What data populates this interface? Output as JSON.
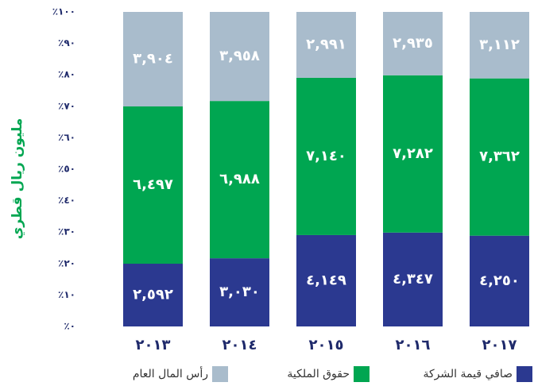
{
  "chart_data": {
    "type": "bar",
    "stacked_percent": true,
    "y_label": "مليون ريال قطري",
    "categories": [
      "٢٠١٣",
      "٢٠١٤",
      "٢٠١٥",
      "٢٠١٦",
      "٢٠١٧"
    ],
    "series": [
      {
        "name": "صافي قيمة الشركة",
        "color": "#2b3990",
        "values": [
          2592,
          3030,
          4149,
          4347,
          4250
        ],
        "value_labels": [
          "٢,٥٩٢",
          "٣,٠٣٠",
          "٤,١٤٩",
          "٤,٣٤٧",
          "٤,٢٥٠"
        ]
      },
      {
        "name": "حقوق الملكية",
        "color": "#00a651",
        "values": [
          6497,
          6988,
          7140,
          7282,
          7362
        ],
        "value_labels": [
          "٦,٤٩٧",
          "٦,٩٨٨",
          "٧,١٤٠",
          "٧,٢٨٢",
          "٧,٣٦٢"
        ]
      },
      {
        "name": "رأس المال العام",
        "color": "#a9bccc",
        "values": [
          3904,
          3958,
          2991,
          2935,
          3112
        ],
        "value_labels": [
          "٣,٩٠٤",
          "٣,٩٥٨",
          "٢,٩٩١",
          "٢,٩٣٥",
          "٣,١١٢"
        ]
      }
    ],
    "ylim": [
      0,
      100
    ],
    "yticks": [
      {
        "value": 0,
        "label": "٪٠"
      },
      {
        "value": 10,
        "label": "٪١٠"
      },
      {
        "value": 20,
        "label": "٪٢٠"
      },
      {
        "value": 30,
        "label": "٪٣٠"
      },
      {
        "value": 40,
        "label": "٪٤٠"
      },
      {
        "value": 50,
        "label": "٪٥٠"
      },
      {
        "value": 60,
        "label": "٪٦٠"
      },
      {
        "value": 70,
        "label": "٪٧٠"
      },
      {
        "value": 80,
        "label": "٪٨٠"
      },
      {
        "value": 90,
        "label": "٪٩٠"
      },
      {
        "value": 100,
        "label": "٪١٠٠"
      }
    ],
    "legend": "bottom"
  }
}
